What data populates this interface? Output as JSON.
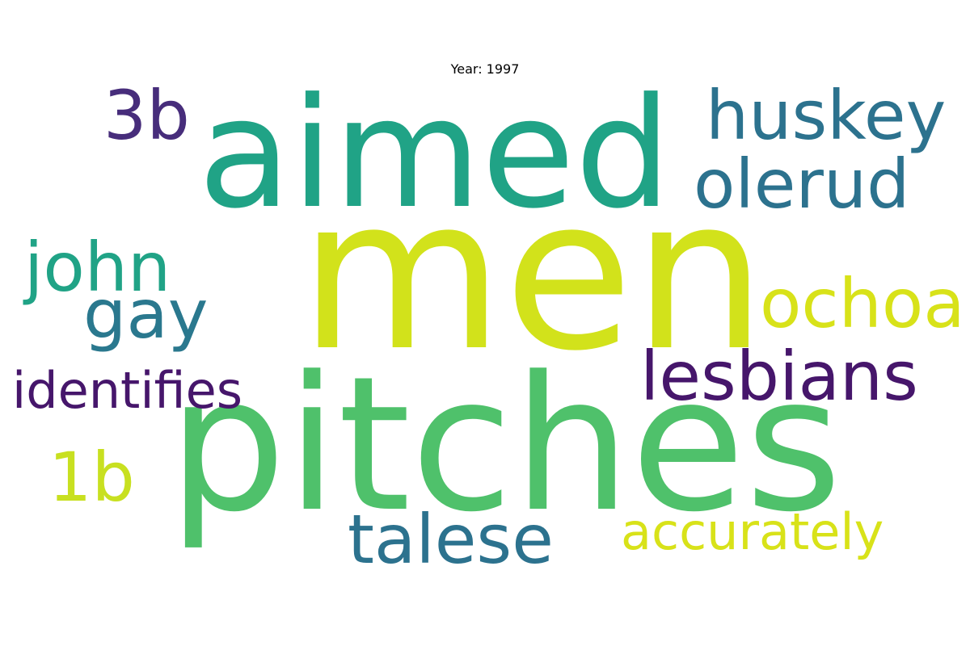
{
  "title": "Year: 1997",
  "words": [
    {
      "text": "men",
      "color": "#d2e21b"
    },
    {
      "text": "pitches",
      "color": "#4fc16b"
    },
    {
      "text": "aimed",
      "color": "#20a386"
    },
    {
      "text": "huskey",
      "color": "#2c728e"
    },
    {
      "text": "olerud",
      "color": "#2c728e"
    },
    {
      "text": "3b",
      "color": "#472d7b"
    },
    {
      "text": "john",
      "color": "#20a386"
    },
    {
      "text": "ochoa",
      "color": "#d8e219"
    },
    {
      "text": "gay",
      "color": "#2a788e"
    },
    {
      "text": "lesbians",
      "color": "#46166b"
    },
    {
      "text": "identifies",
      "color": "#46166b"
    },
    {
      "text": "1b",
      "color": "#c8e020"
    },
    {
      "text": "talese",
      "color": "#2c728e"
    },
    {
      "text": "accurately",
      "color": "#d8e219"
    }
  ]
}
